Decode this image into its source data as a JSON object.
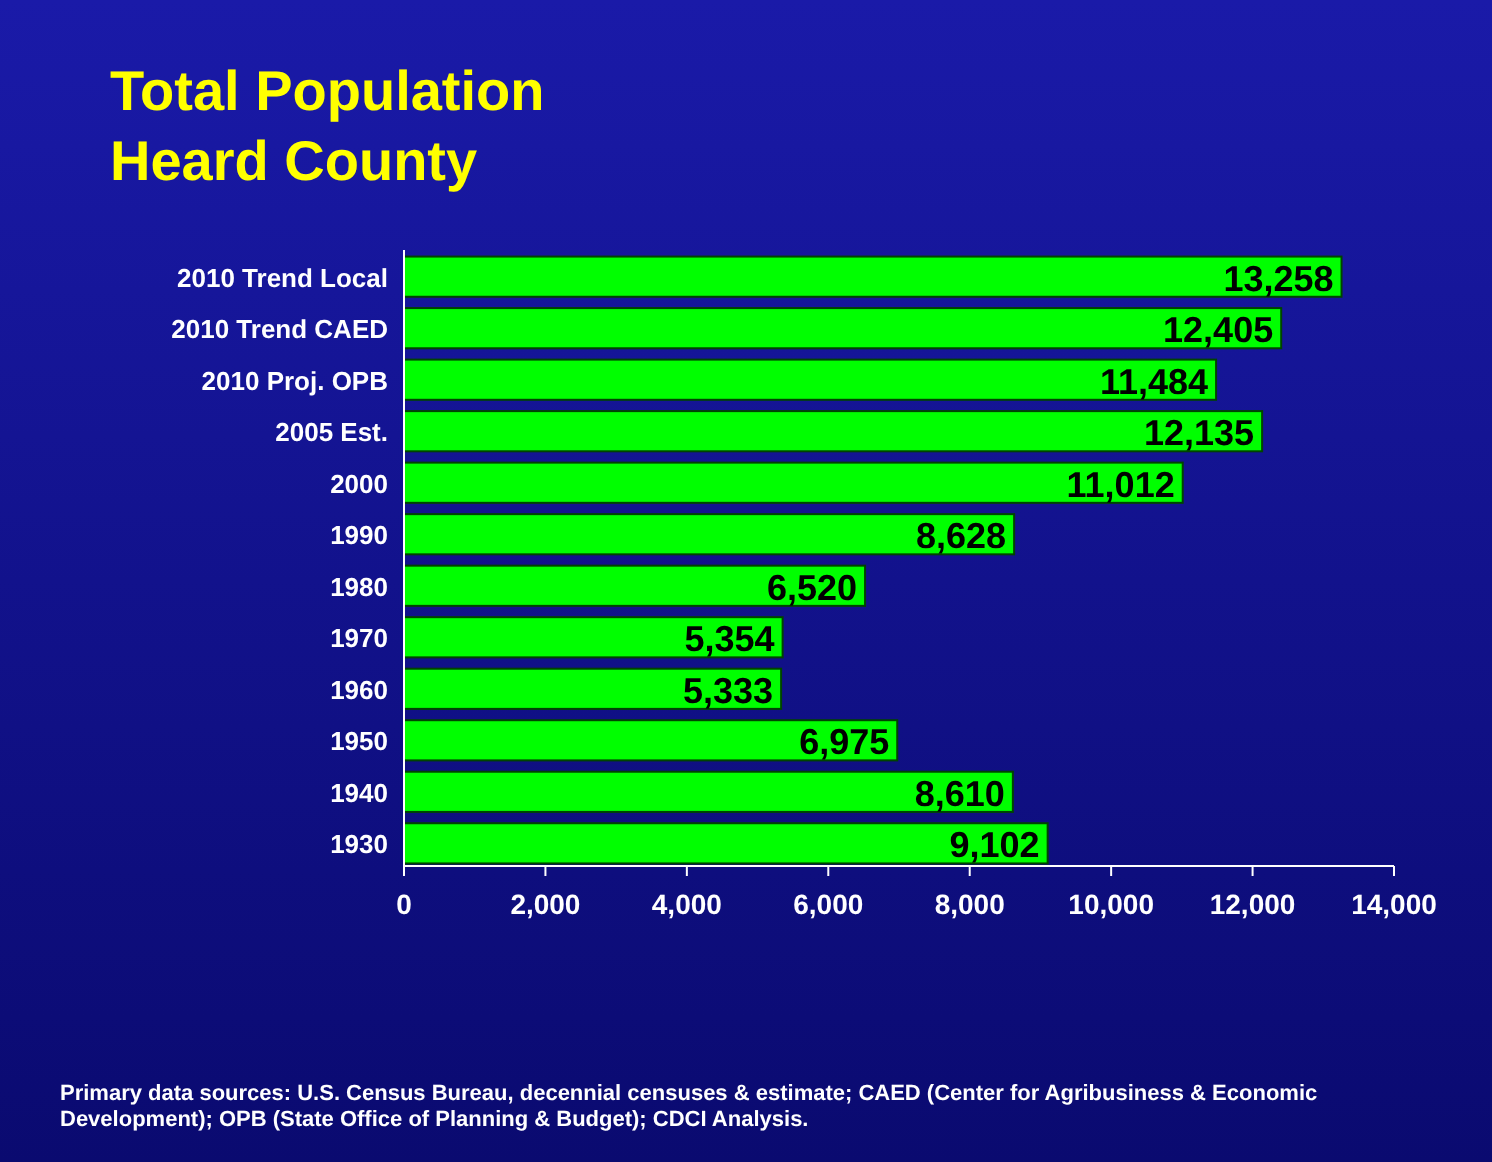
{
  "chart_data": {
    "type": "bar",
    "orientation": "horizontal",
    "title": "Total Population\nHeard County",
    "categories": [
      "2010 Trend Local",
      "2010 Trend CAED",
      "2010 Proj. OPB",
      "2005 Est.",
      "2000",
      "1990",
      "1980",
      "1970",
      "1960",
      "1950",
      "1940",
      "1930"
    ],
    "values": [
      13258,
      12405,
      11484,
      12135,
      11012,
      8628,
      6520,
      5354,
      5333,
      6975,
      8610,
      9102
    ],
    "color": "#00ff00",
    "xlim": [
      0,
      14000
    ],
    "xticks": [
      {
        "value": 0,
        "label": "0"
      },
      {
        "value": 2000,
        "label": "2,000"
      },
      {
        "value": 4000,
        "label": "4,000"
      },
      {
        "value": 6000,
        "label": "6,000"
      },
      {
        "value": 8000,
        "label": "8,000"
      },
      {
        "value": 10000,
        "label": "10,000"
      },
      {
        "value": 12000,
        "label": "12,000"
      },
      {
        "value": 14000,
        "label": "14,000"
      }
    ],
    "value_labels": [
      "13,258",
      "12,405",
      "11,484",
      "12,135",
      "11,012",
      "8,628",
      "6,520",
      "5,354",
      "5,333",
      "6,975",
      "8,610",
      "9,102"
    ],
    "grid": false,
    "annotations": [
      "Primary data sources:  U.S. Census Bureau, decennial censuses & estimate; CAED (Center for Agribusiness & Economic Development); OPB (State Office of Planning & Budget); CDCI Analysis."
    ]
  }
}
